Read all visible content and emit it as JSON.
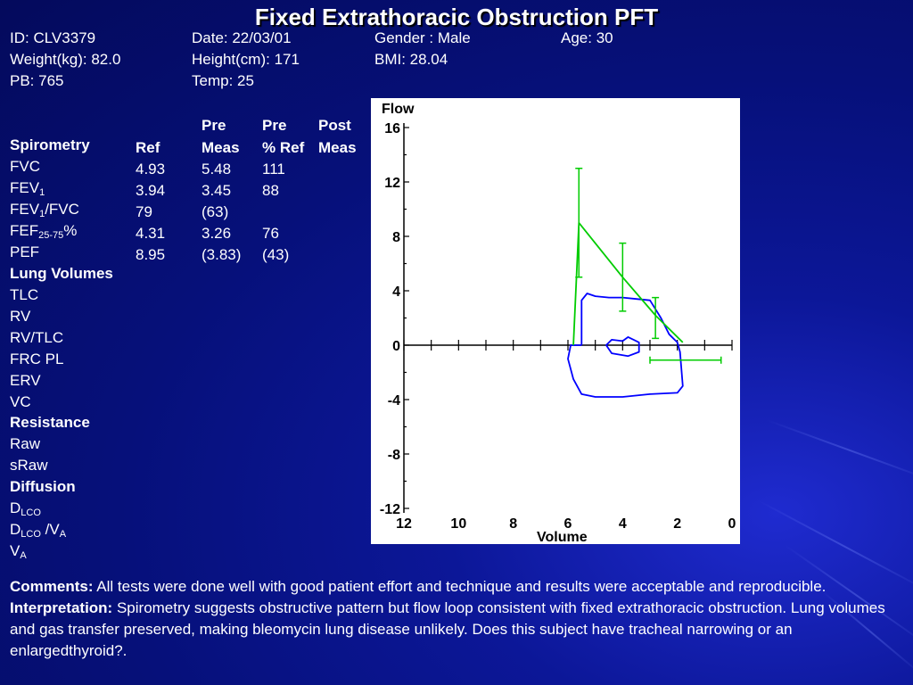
{
  "title": "Fixed Extrathoracic Obstruction PFT",
  "patient": {
    "id": "ID: CLV3379",
    "date": "Date: 22/03/01",
    "gender": "Gender : Male",
    "age": "Age: 30",
    "weight": "Weight(kg): 82.0",
    "height": "Height(cm): 171",
    "bmi": "BMI: 28.04",
    "pb": "PB: 765",
    "temp": "Temp: 25"
  },
  "table": {
    "headers": {
      "ref": "Ref",
      "pre_meas_1": "Pre",
      "pre_meas_2": "Meas",
      "pre_pct_1": "Pre",
      "pre_pct_2": "% Ref",
      "post_meas_1": "Post",
      "post_meas_2": "Meas"
    },
    "sections": {
      "spirometry": "Spirometry",
      "lung_volumes": "Lung Volumes",
      "resistance": "Resistance",
      "diffusion": "Diffusion"
    },
    "rows": {
      "fvc": {
        "label": "FVC",
        "ref": "4.93",
        "meas": "5.48",
        "pct": "111"
      },
      "fev1": {
        "label": "FEV",
        "sub": "1",
        "ref": "3.94",
        "meas": "3.45",
        "pct": "88"
      },
      "fev1fvc": {
        "label": "FEV",
        "sub": "1",
        "label2": "/FVC",
        "ref": "79",
        "meas": "(63)",
        "pct": ""
      },
      "fef": {
        "label": "FEF",
        "sub": "25-75",
        "label2": "%",
        "ref": "4.31",
        "meas": "3.26",
        "pct": "76"
      },
      "pef": {
        "label": "PEF",
        "ref": "8.95",
        "meas": "(3.83)",
        "pct": "(43)"
      },
      "tlc": {
        "label": "TLC"
      },
      "rv": {
        "label": "RV"
      },
      "rvtlc": {
        "label": "RV/TLC"
      },
      "frc": {
        "label": "FRC PL"
      },
      "erv": {
        "label": "ERV"
      },
      "vc": {
        "label": "VC"
      },
      "raw": {
        "label": "Raw"
      },
      "sraw": {
        "label": "sRaw"
      },
      "dlco": {
        "label": "D",
        "sub": "LCO"
      },
      "dlcova": {
        "label": "D",
        "sub": "LCO",
        "label2": " /V",
        "sub2": "A"
      },
      "va": {
        "label": "V",
        "sub": "A"
      }
    }
  },
  "chart_data": {
    "type": "line",
    "title": "",
    "ylabel": "Flow",
    "xlabel": "Volume",
    "xlim": [
      12,
      0
    ],
    "ylim": [
      -12,
      16
    ],
    "x_ticks": [
      "12",
      "10",
      "8",
      "6",
      "4",
      "2",
      "0"
    ],
    "y_ticks": [
      "16",
      "12",
      "8",
      "4",
      "0",
      "-4",
      "-8",
      "-12"
    ],
    "series": [
      {
        "color": "#0000ff",
        "points": [
          [
            5.5,
            0
          ],
          [
            5.5,
            1.5
          ],
          [
            5.5,
            3.3
          ],
          [
            5.3,
            3.8
          ],
          [
            5.0,
            3.6
          ],
          [
            4.5,
            3.5
          ],
          [
            4.0,
            3.5
          ],
          [
            3.5,
            3.4
          ],
          [
            3.0,
            3.3
          ],
          [
            2.6,
            2.0
          ],
          [
            2.3,
            0.8
          ],
          [
            2.0,
            0.2
          ],
          [
            1.9,
            -0.5
          ],
          [
            1.8,
            -3.0
          ],
          [
            2.0,
            -3.5
          ],
          [
            3.0,
            -3.6
          ],
          [
            4.0,
            -3.8
          ],
          [
            5.0,
            -3.8
          ],
          [
            5.5,
            -3.6
          ],
          [
            5.8,
            -2.5
          ],
          [
            6.0,
            -1.0
          ],
          [
            5.9,
            0
          ],
          [
            5.5,
            0
          ]
        ]
      },
      {
        "color": "#0000ff",
        "points": [
          [
            4.0,
            0.3
          ],
          [
            4.4,
            0.4
          ],
          [
            4.6,
            0.0
          ],
          [
            4.4,
            -0.6
          ],
          [
            3.8,
            -0.8
          ],
          [
            3.4,
            -0.5
          ],
          [
            3.4,
            0.2
          ],
          [
            3.8,
            0.6
          ],
          [
            4.0,
            0.3
          ]
        ]
      },
      {
        "color": "#00cc00",
        "points": [
          [
            5.8,
            0
          ],
          [
            5.6,
            9
          ],
          [
            4.0,
            5
          ],
          [
            2.8,
            2.2
          ],
          [
            1.8,
            0.2
          ]
        ]
      }
    ],
    "error_bars": [
      {
        "x": 5.6,
        "y": 9,
        "y_low": 5,
        "y_high": 13
      },
      {
        "x": 4.0,
        "y": 5,
        "y_low": 2.5,
        "y_high": 7.5
      },
      {
        "x": 2.8,
        "y": 2.2,
        "y_low": 0.5,
        "y_high": 3.5
      },
      {
        "x": 2.0,
        "y": -1.1,
        "x_low": 0.4,
        "x_high": 3.0
      }
    ]
  },
  "comments": {
    "comments_label": "Comments:",
    "comments_text": " All tests were done well with good patient effort and technique and results were acceptable and reproducible.",
    "interp_label": "Interpretation:",
    "interp_text": " Spirometry suggests obstructive pattern but flow loop consistent with fixed extrathoracic obstruction. Lung volumes and gas transfer preserved, making bleomycin lung disease unlikely. Does this subject have tracheal narrowing or an enlargedthyroid?."
  }
}
